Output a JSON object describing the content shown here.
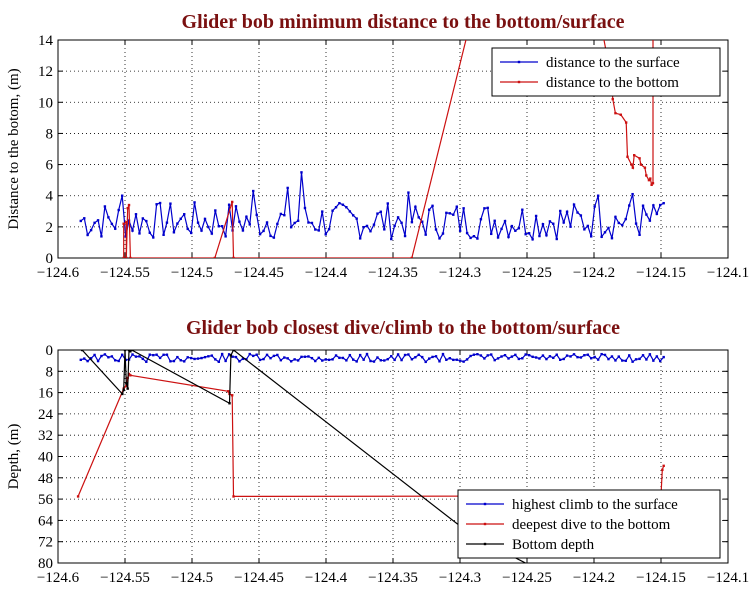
{
  "chart_data": [
    {
      "type": "line",
      "title": "Glider bob minimum distance to the bottom/surface",
      "xlabel": "",
      "ylabel": "Distance to the botom, (m)",
      "xlim": [
        -124.6,
        -124.1
      ],
      "ylim": [
        0,
        14
      ],
      "y_reversed": false,
      "xticks": [
        -124.6,
        -124.55,
        -124.5,
        -124.45,
        -124.4,
        -124.35,
        -124.3,
        -124.25,
        -124.2,
        -124.15,
        -124.1
      ],
      "xtick_labels": [
        "−124.6",
        "−124.55",
        "−124.5",
        "−124.45",
        "−124.4",
        "−124.35",
        "−124.3",
        "−124.25",
        "−124.2",
        "−124.15",
        "−124.1"
      ],
      "yticks": [
        0,
        2,
        4,
        6,
        8,
        10,
        12,
        14
      ],
      "ytick_labels": [
        "0",
        "2",
        "4",
        "6",
        "8",
        "10",
        "12",
        "14"
      ],
      "grid": true,
      "legend_position": "top-right",
      "series": [
        {
          "name": "distance to the surface",
          "color": "#0000cc",
          "marker": true,
          "values": []
        },
        {
          "name": "distance to the bottom",
          "color": "#cc1111",
          "marker": true,
          "points": [
            [
              -124.551,
              0
            ],
            [
              -124.551,
              2.2
            ],
            [
              -124.549,
              2.3
            ],
            [
              -124.549,
              0
            ],
            [
              -124.548,
              3.2
            ],
            [
              -124.547,
              3.4
            ],
            [
              -124.546,
              0
            ],
            [
              -124.483,
              0
            ],
            [
              -124.47,
              3.6
            ],
            [
              -124.469,
              0
            ],
            [
              -124.336,
              0
            ],
            [
              -124.295,
              14.2
            ],
            [
              -124.193,
              14.2
            ],
            [
              -124.187,
              11.5
            ],
            [
              -124.186,
              10.2
            ],
            [
              -124.184,
              9.3
            ],
            [
              -124.18,
              9.2
            ],
            [
              -124.176,
              8.7
            ],
            [
              -124.175,
              6.5
            ],
            [
              -124.172,
              6.0
            ],
            [
              -124.171,
              5.8
            ],
            [
              -124.17,
              6.6
            ],
            [
              -124.166,
              6.4
            ],
            [
              -124.165,
              6.0
            ],
            [
              -124.162,
              5.8
            ],
            [
              -124.161,
              5.3
            ],
            [
              -124.159,
              5.0
            ],
            [
              -124.158,
              5.1
            ],
            [
              -124.157,
              4.7
            ],
            [
              -124.156,
              4.8
            ],
            [
              -124.156,
              14.2
            ]
          ]
        }
      ]
    },
    {
      "type": "line",
      "title": "Glider bob closest dive/climb to the bottom/surface",
      "xlabel": "",
      "ylabel": "Depth, (m)",
      "xlim": [
        -124.6,
        -124.1
      ],
      "ylim": [
        0,
        80
      ],
      "y_reversed": true,
      "xticks": [
        -124.6,
        -124.55,
        -124.5,
        -124.45,
        -124.4,
        -124.35,
        -124.3,
        -124.25,
        -124.2,
        -124.15,
        -124.1
      ],
      "xtick_labels": [
        "−124.6",
        "−124.55",
        "−124.5",
        "−124.45",
        "−124.4",
        "−124.35",
        "−124.3",
        "−124.25",
        "−124.2",
        "−124.15",
        "−124.1"
      ],
      "yticks": [
        0,
        8,
        16,
        24,
        32,
        40,
        48,
        56,
        64,
        72,
        80
      ],
      "ytick_labels": [
        "0",
        "8",
        "16",
        "24",
        "32",
        "40",
        "48",
        "56",
        "64",
        "72",
        "80"
      ],
      "grid": true,
      "legend_position": "bottom-right",
      "series": [
        {
          "name": "highest climb to the surface",
          "color": "#0000cc",
          "marker": true,
          "values": []
        },
        {
          "name": "deepest dive to the bottom",
          "color": "#cc1111",
          "marker": true,
          "points": [
            [
              -124.585,
              55
            ],
            [
              -124.551,
              14.5
            ],
            [
              -124.549,
              13.5
            ],
            [
              -124.548,
              10.5
            ],
            [
              -124.547,
              9.0
            ],
            [
              -124.546,
              9.5
            ],
            [
              -124.473,
              15.5
            ],
            [
              -124.472,
              16.5
            ],
            [
              -124.47,
              17.0
            ],
            [
              -124.469,
              55.0
            ],
            [
              -124.16,
              54.8
            ],
            [
              -124.15,
              54.5
            ],
            [
              -124.149,
              45.0
            ],
            [
              -124.148,
              43.5
            ]
          ]
        },
        {
          "name": "Bottom depth",
          "color": "#000000",
          "marker": true,
          "points": [
            [
              -124.582,
              0
            ],
            [
              -124.552,
              16.5
            ],
            [
              -124.551,
              15.0
            ],
            [
              -124.55,
              0
            ],
            [
              -124.549,
              12.5
            ],
            [
              -124.548,
              14.5
            ],
            [
              -124.547,
              0
            ],
            [
              -124.546,
              0.5
            ],
            [
              -124.545,
              0
            ],
            [
              -124.472,
              20.0
            ],
            [
              -124.471,
              2.0
            ],
            [
              -124.469,
              0
            ],
            [
              -124.29,
              70
            ],
            [
              -124.22,
              88
            ]
          ]
        }
      ]
    }
  ]
}
